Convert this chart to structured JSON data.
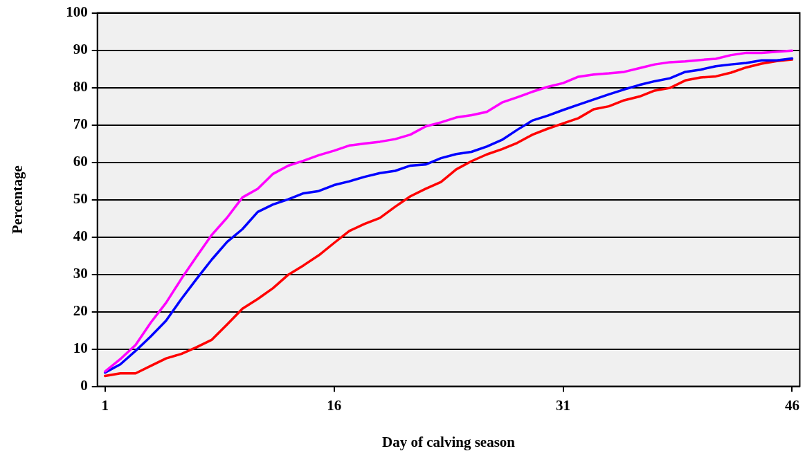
{
  "chart_data": {
    "type": "line",
    "xlabel": "Day of calving season",
    "ylabel": "Percentage",
    "x": [
      1,
      2,
      3,
      4,
      5,
      6,
      7,
      8,
      9,
      10,
      11,
      12,
      13,
      14,
      15,
      16,
      17,
      18,
      19,
      20,
      21,
      22,
      23,
      24,
      25,
      26,
      27,
      28,
      29,
      30,
      31,
      32,
      33,
      34,
      35,
      36,
      37,
      38,
      39,
      40,
      41,
      42,
      43,
      44,
      45,
      46
    ],
    "xlim": [
      0.5,
      46.5
    ],
    "xticks": [
      1,
      16,
      31,
      46
    ],
    "ylim": [
      0,
      100
    ],
    "yticks": [
      0,
      10,
      20,
      30,
      40,
      50,
      60,
      70,
      80,
      90,
      100
    ],
    "grid": "y",
    "legend": false,
    "marker": "none",
    "line_style": "solid",
    "series": [
      {
        "color": "#ff00ff",
        "values": [
          4.0,
          7.3,
          11.1,
          17.1,
          22.4,
          28.8,
          34.8,
          40.6,
          45.2,
          50.6,
          52.9,
          56.9,
          59.1,
          60.4,
          61.9,
          63.1,
          64.5,
          65.0,
          65.5,
          66.2,
          67.4,
          69.6,
          70.7,
          72.0,
          72.6,
          73.5,
          76.0,
          77.4,
          78.9,
          80.2,
          81.2,
          82.9,
          83.5,
          83.8,
          84.2,
          85.2,
          86.2,
          86.8,
          87.0,
          87.4,
          87.7,
          88.7,
          89.3,
          89.3,
          89.6,
          89.9
        ]
      },
      {
        "color": "#0000ff",
        "values": [
          3.7,
          5.9,
          9.5,
          13.4,
          17.6,
          23.4,
          28.8,
          34.0,
          38.7,
          42.1,
          46.7,
          48.7,
          50.1,
          51.7,
          52.3,
          53.9,
          54.9,
          56.1,
          57.1,
          57.7,
          59.1,
          59.4,
          61.1,
          62.2,
          62.8,
          64.2,
          66.0,
          68.7,
          71.2,
          72.5,
          74.0,
          75.4,
          76.8,
          78.2,
          79.5,
          80.7,
          81.7,
          82.5,
          84.2,
          84.8,
          85.7,
          86.2,
          86.6,
          87.3,
          87.3,
          87.8
        ]
      },
      {
        "color": "#ff0000",
        "values": [
          2.8,
          3.5,
          3.5,
          5.5,
          7.5,
          8.7,
          10.5,
          12.5,
          16.6,
          20.8,
          23.4,
          26.3,
          29.9,
          32.4,
          35.1,
          38.4,
          41.6,
          43.5,
          45.1,
          48.1,
          50.9,
          52.9,
          54.7,
          58.1,
          60.3,
          62.1,
          63.5,
          65.2,
          67.4,
          69.0,
          70.4,
          71.8,
          74.2,
          75.0,
          76.6,
          77.6,
          79.2,
          79.9,
          81.9,
          82.7,
          83.0,
          84.0,
          85.4,
          86.4,
          87.1,
          87.5
        ]
      }
    ]
  }
}
